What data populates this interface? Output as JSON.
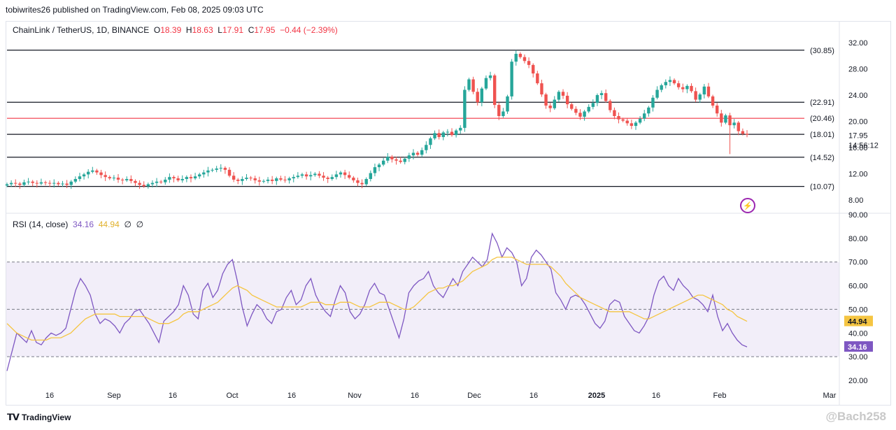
{
  "header": {
    "published": "tobiwrites26 published on TradingView.com, Feb 08, 2025 09:03 UTC",
    "symbol": "ChainLink / TetherUS, 1D, BINANCE",
    "o_label": "O",
    "o_value": "18.39",
    "h_label": "H",
    "h_value": "18.63",
    "l_label": "L",
    "l_value": "17.91",
    "c_label": "C",
    "c_value": "17.95",
    "change": "−0.44 (−2.39%)"
  },
  "rsi_legend": {
    "label": "RSI (14, close)",
    "rsi_value": "34.16",
    "ma_value": "44.94",
    "extra1": "∅",
    "extra2": "∅"
  },
  "footer": {
    "brand": "TradingView",
    "watermark": "@Bach258"
  },
  "icons": {
    "bolt": "lightning-bolt-icon",
    "logo": "tradingview-logo-icon"
  },
  "colors": {
    "up": "#26a69a",
    "down": "#ef5350",
    "rsi": "#7e57c2",
    "rsi_ma": "#f5c542",
    "red_level": "#f23645",
    "level": "#131722"
  },
  "chart_data": [
    {
      "type": "candlestick",
      "title": "ChainLink / TetherUS, 1D, BINANCE",
      "y_axis_ticks": [
        "32.00",
        "28.00",
        "24.00",
        "20.00",
        "16.00",
        "12.00",
        "8.00"
      ],
      "y_tick_values": [
        32,
        28,
        24,
        20,
        16,
        12,
        8
      ],
      "x_axis_ticks": [
        "16",
        "Sep",
        "16",
        "Oct",
        "16",
        "Nov",
        "16",
        "Dec",
        "16",
        "2025",
        "16",
        "Feb",
        "Mar"
      ],
      "last_price": "17.95",
      "countdown": "14:56:12",
      "horizontal_levels": [
        {
          "label": "(30.85)",
          "value": 30.85,
          "color": "#131722"
        },
        {
          "label": "(22.91)",
          "value": 22.91,
          "color": "#131722"
        },
        {
          "label": "(20.46)",
          "value": 20.46,
          "color": "#f23645"
        },
        {
          "label": "(18.01)",
          "value": 18.01,
          "color": "#131722"
        },
        {
          "label": "(14.52)",
          "value": 14.52,
          "color": "#131722"
        },
        {
          "label": "(10.07)",
          "value": 10.07,
          "color": "#131722"
        }
      ],
      "close_series": [
        10.4,
        10.6,
        10.5,
        10.3,
        10.7,
        10.8,
        10.6,
        10.5,
        10.7,
        10.6,
        10.5,
        10.6,
        10.4,
        10.5,
        10.3,
        10.8,
        11.2,
        11.6,
        11.9,
        12.3,
        12.5,
        12.2,
        11.8,
        11.5,
        11.3,
        11.4,
        11.1,
        11.0,
        11.2,
        10.9,
        10.6,
        10.3,
        10.1,
        10.4,
        10.6,
        10.8,
        10.7,
        11.1,
        11.5,
        11.3,
        11.0,
        11.2,
        11.5,
        11.3,
        11.6,
        11.9,
        12.2,
        12.5,
        12.6,
        12.8,
        12.9,
        12.6,
        11.7,
        11.1,
        10.9,
        11.2,
        11.4,
        11.3,
        11.0,
        10.8,
        10.9,
        11.1,
        10.9,
        11.3,
        11.1,
        11.0,
        11.3,
        11.5,
        11.7,
        11.9,
        11.6,
        11.8,
        12.0,
        11.7,
        11.4,
        11.2,
        11.5,
        11.9,
        12.2,
        11.8,
        11.4,
        11.0,
        10.6,
        10.4,
        11.2,
        12.1,
        13.0,
        13.4,
        14.0,
        14.6,
        14.2,
        14.0,
        13.8,
        14.3,
        14.8,
        15.2,
        14.9,
        15.6,
        16.4,
        17.4,
        18.2,
        17.6,
        18.3,
        18.4,
        17.9,
        18.6,
        19.0,
        24.8,
        26.4,
        24.5,
        22.9,
        25.0,
        26.6,
        27.0,
        22.5,
        20.8,
        21.5,
        23.8,
        29.1,
        30.3,
        29.8,
        29.2,
        28.6,
        27.3,
        25.8,
        24.1,
        22.4,
        22.0,
        23.3,
        24.5,
        23.9,
        22.6,
        21.9,
        21.3,
        20.7,
        21.5,
        22.2,
        22.8,
        24.0,
        24.3,
        23.1,
        21.7,
        20.8,
        20.3,
        20.1,
        19.7,
        19.3,
        19.8,
        20.4,
        21.2,
        22.1,
        23.6,
        24.8,
        25.5,
        26.0,
        26.3,
        25.8,
        25.2,
        24.9,
        25.4,
        24.6,
        23.3,
        24.1,
        25.3,
        23.8,
        22.4,
        21.2,
        19.8,
        20.9,
        19.4,
        19.8,
        18.5,
        18.1,
        17.95
      ],
      "price_ylim": [
        7.0,
        33.0
      ]
    },
    {
      "type": "line",
      "title": "RSI (14, close)",
      "y_axis_ticks": [
        "90.00",
        "80.00",
        "70.00",
        "60.00",
        "50.00",
        "40.00",
        "30.00",
        "20.00"
      ],
      "y_tick_values": [
        90,
        80,
        70,
        60,
        50,
        40,
        30,
        20
      ],
      "bands": {
        "upper": 70,
        "middle": 50,
        "lower": 30
      },
      "series": [
        {
          "name": "RSI",
          "current": "34.16",
          "color": "#7e57c2",
          "values": [
            24,
            32,
            40,
            38,
            36,
            41,
            36,
            35,
            38,
            40,
            39,
            40,
            42,
            50,
            58,
            63,
            60,
            56,
            48,
            44,
            46,
            45,
            43,
            40,
            44,
            46,
            49,
            50,
            47,
            44,
            40,
            36,
            45,
            47,
            49,
            52,
            60,
            56,
            48,
            46,
            58,
            61,
            55,
            58,
            65,
            69,
            71,
            62,
            51,
            43,
            48,
            52,
            50,
            46,
            44,
            49,
            50,
            55,
            58,
            52,
            54,
            60,
            63,
            56,
            52,
            49,
            47,
            54,
            60,
            57,
            49,
            46,
            48,
            52,
            58,
            61,
            57,
            56,
            50,
            44,
            38,
            46,
            57,
            60,
            62,
            63,
            66,
            60,
            57,
            55,
            59,
            63,
            60,
            66,
            69,
            72,
            70,
            68,
            71,
            82,
            78,
            72,
            76,
            74,
            70,
            60,
            63,
            72,
            75,
            73,
            70,
            67,
            57,
            54,
            50,
            55,
            56,
            55,
            52,
            48,
            44,
            42,
            45,
            52,
            54,
            53,
            47,
            44,
            41,
            40,
            43,
            47,
            56,
            62,
            64,
            60,
            58,
            63,
            60,
            58,
            55,
            54,
            52,
            49,
            56,
            47,
            41,
            44,
            40,
            37,
            35,
            34.16
          ]
        },
        {
          "name": "RSI-based MA",
          "current": "44.94",
          "color": "#f5c542",
          "values": [
            44,
            42,
            40,
            39,
            38,
            37,
            37,
            37,
            37,
            38,
            38,
            38,
            39,
            40,
            42,
            44,
            46,
            47,
            48,
            48,
            48,
            48,
            48,
            47,
            47,
            47,
            47,
            47,
            47,
            46,
            45,
            44,
            44,
            44,
            45,
            46,
            48,
            49,
            49,
            49,
            50,
            51,
            52,
            53,
            55,
            57,
            59,
            60,
            59,
            58,
            56,
            55,
            54,
            53,
            52,
            51,
            51,
            51,
            51,
            51,
            51,
            52,
            53,
            53,
            53,
            52,
            52,
            52,
            53,
            53,
            53,
            52,
            51,
            51,
            51,
            52,
            53,
            53,
            53,
            52,
            51,
            50,
            50,
            51,
            53,
            55,
            57,
            58,
            59,
            59,
            60,
            60,
            61,
            62,
            64,
            66,
            67,
            68,
            69,
            71,
            72,
            72,
            72,
            72,
            71,
            70,
            69,
            69,
            69,
            69,
            69,
            68,
            66,
            64,
            61,
            59,
            57,
            55,
            54,
            53,
            52,
            51,
            50,
            49,
            49,
            49,
            49,
            49,
            48,
            47,
            46,
            46,
            47,
            48,
            49,
            50,
            51,
            52,
            53,
            54,
            55,
            56,
            56,
            55,
            54,
            53,
            52,
            50,
            49,
            47,
            46,
            44.94
          ]
        }
      ]
    }
  ]
}
